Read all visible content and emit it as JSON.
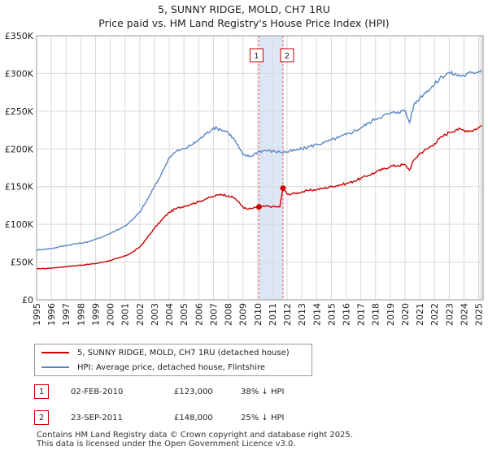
{
  "chart_data": {
    "type": "line",
    "title": "5, SUNNY RIDGE, MOLD, CH7 1RU",
    "subtitle": "Price paid vs. HM Land Registry's House Price Index (HPI)",
    "xlim": [
      1995,
      2025.3
    ],
    "ylim": [
      0,
      350000
    ],
    "x_ticks": [
      1995,
      1996,
      1997,
      1998,
      1999,
      2000,
      2001,
      2002,
      2003,
      2004,
      2005,
      2006,
      2007,
      2008,
      2009,
      2010,
      2011,
      2012,
      2013,
      2014,
      2015,
      2016,
      2017,
      2018,
      2019,
      2020,
      2021,
      2022,
      2023,
      2024,
      2025
    ],
    "y_ticks": [
      0,
      50000,
      100000,
      150000,
      200000,
      250000,
      300000,
      350000
    ],
    "y_tick_labels": [
      "£0",
      "£50K",
      "£100K",
      "£150K",
      "£200K",
      "£250K",
      "£300K",
      "£350K"
    ],
    "grid": true,
    "series": [
      {
        "name": "5, SUNNY RIDGE, MOLD, CH7 1RU (detached house)",
        "color": "#cc0000",
        "x": [
          1995.0,
          1995.5,
          1996.0,
          1996.5,
          1997.0,
          1997.5,
          1998.0,
          1998.5,
          1999.0,
          1999.5,
          2000.0,
          2000.5,
          2001.0,
          2001.5,
          2002.0,
          2002.5,
          2003.0,
          2003.5,
          2004.0,
          2004.5,
          2005.0,
          2005.5,
          2006.0,
          2006.5,
          2007.0,
          2007.5,
          2008.0,
          2008.5,
          2009.0,
          2009.3,
          2009.6,
          2010.09,
          2010.5,
          2011.0,
          2011.5,
          2011.72,
          2012.0,
          2012.5,
          2013.0,
          2013.5,
          2014.0,
          2014.5,
          2015.0,
          2015.5,
          2016.0,
          2016.5,
          2017.0,
          2017.5,
          2018.0,
          2018.5,
          2019.0,
          2019.5,
          2020.0,
          2020.3,
          2020.6,
          2021.0,
          2021.5,
          2022.0,
          2022.5,
          2023.0,
          2023.5,
          2024.0,
          2024.5,
          2025.0,
          2025.2
        ],
        "values": [
          41000,
          41500,
          42000,
          43000,
          44000,
          45000,
          46000,
          47000,
          48000,
          50000,
          52000,
          55000,
          58000,
          63000,
          70000,
          82000,
          95000,
          106000,
          116000,
          121000,
          124000,
          127000,
          130000,
          134000,
          137000,
          140000,
          138000,
          134000,
          123000,
          120000,
          121000,
          123000,
          124000,
          123500,
          123000,
          148000,
          140000,
          141000,
          143000,
          145000,
          146000,
          148000,
          150000,
          152000,
          154000,
          157000,
          161000,
          165000,
          169000,
          173000,
          177000,
          178000,
          179000,
          172000,
          185000,
          194000,
          200000,
          207000,
          216000,
          222000,
          226000,
          225000,
          224000,
          228000,
          231000
        ]
      },
      {
        "name": "HPI: Average price, detached house, Flintshire",
        "color": "#5b87c5",
        "x": [
          1995.0,
          1995.5,
          1996.0,
          1996.5,
          1997.0,
          1997.5,
          1998.0,
          1998.5,
          1999.0,
          1999.5,
          2000.0,
          2000.5,
          2001.0,
          2001.5,
          2002.0,
          2002.5,
          2003.0,
          2003.5,
          2004.0,
          2004.5,
          2005.0,
          2005.5,
          2006.0,
          2006.5,
          2007.0,
          2007.5,
          2008.0,
          2008.5,
          2009.0,
          2009.5,
          2010.0,
          2010.5,
          2011.0,
          2011.5,
          2012.0,
          2012.5,
          2013.0,
          2013.5,
          2014.0,
          2014.5,
          2015.0,
          2015.5,
          2016.0,
          2016.5,
          2017.0,
          2017.5,
          2018.0,
          2018.5,
          2019.0,
          2019.5,
          2020.0,
          2020.3,
          2020.6,
          2021.0,
          2021.5,
          2022.0,
          2022.5,
          2023.0,
          2023.5,
          2024.0,
          2024.5,
          2025.0,
          2025.2
        ],
        "values": [
          66000,
          67000,
          68000,
          70000,
          72000,
          74000,
          75000,
          77000,
          80000,
          84000,
          88000,
          93000,
          98000,
          106000,
          116000,
          132000,
          150000,
          168000,
          189000,
          197000,
          200000,
          205000,
          212000,
          220000,
          228000,
          226000,
          222000,
          210000,
          192000,
          190000,
          196000,
          198000,
          197000,
          196000,
          196000,
          198000,
          200000,
          203000,
          206000,
          208000,
          212000,
          215000,
          219000,
          223000,
          228000,
          234000,
          240000,
          244000,
          247000,
          249000,
          251000,
          235000,
          258000,
          268000,
          277000,
          285000,
          296000,
          301000,
          298000,
          297000,
          301000,
          303000,
          305000
        ]
      }
    ],
    "annotations": [
      {
        "label": "1",
        "x": 2010.09,
        "date": "02-FEB-2010",
        "price": "£123,000",
        "hpi_diff": "38% ↓ HPI",
        "value": 123000
      },
      {
        "label": "2",
        "x": 2011.72,
        "date": "23-SEP-2011",
        "price": "£148,000",
        "hpi_diff": "25% ↓ HPI",
        "value": 148000
      }
    ]
  },
  "footer": {
    "line1": "Contains HM Land Registry data © Crown copyright and database right 2025.",
    "line2": "This data is licensed under the Open Government Licence v3.0."
  }
}
